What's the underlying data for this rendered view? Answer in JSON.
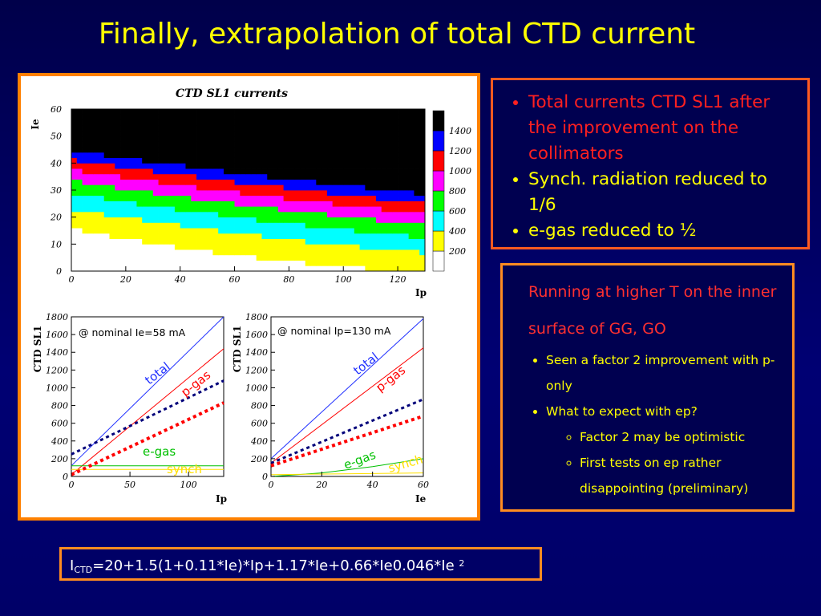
{
  "slide_title": "Finally, extrapolation of total CTD current",
  "box1": {
    "items": [
      {
        "text": "Total currents CTD SL1 after the improvement on the collimators"
      },
      {
        "text": "Synch. radiation reduced to 1/6"
      },
      {
        "text": "e-gas reduced to ½"
      }
    ]
  },
  "box2": {
    "heading": "Running at higher T on the inner surface of GG, GO",
    "items": [
      "Seen a factor 2 improvement with p-only",
      "What to expect with ep?"
    ],
    "subitems": [
      "Factor 2 may be optimistic",
      "First tests on ep rather disappointing (preliminary)"
    ]
  },
  "formula": {
    "prefix": "I",
    "subscript": "CTD",
    "body": "=20+1.5(1+0.11*Ie)*Ip+1.17*Ie+0.66*Ie0.046*Ie",
    "superscript": "2"
  },
  "colors": {
    "title": "#ffff00",
    "bullet_red": "#ff2020",
    "border_orange": "#ff8000",
    "total_line": "#2030ff",
    "pgas_line": "#ff0000",
    "egas_line": "#00c000",
    "synch_line": "#ffe000"
  },
  "chart_data": [
    {
      "type": "heatmap",
      "title": "CTD SL1 currents",
      "xlabel": "Ip",
      "ylabel": "Ie",
      "xlim": [
        0,
        130
      ],
      "ylim": [
        0,
        60
      ],
      "x_ticks": [
        "0",
        "20",
        "40",
        "60",
        "80",
        "100",
        "120"
      ],
      "y_ticks": [
        "0",
        "10",
        "20",
        "30",
        "40",
        "50",
        "60"
      ],
      "colorbar": {
        "labels": [
          "200",
          "400",
          "600",
          "800",
          "1000",
          "1200",
          "1400"
        ],
        "bins": [
          {
            "min": 0,
            "max": 200,
            "color": "#ffffff"
          },
          {
            "min": 200,
            "max": 400,
            "color": "#ffff00"
          },
          {
            "min": 400,
            "max": 600,
            "color": "#00ffff"
          },
          {
            "min": 600,
            "max": 800,
            "color": "#00ff00"
          },
          {
            "min": 800,
            "max": 1000,
            "color": "#ff00ff"
          },
          {
            "min": 1000,
            "max": 1200,
            "color": "#ff0000"
          },
          {
            "min": 1200,
            "max": 1400,
            "color": "#0000ff"
          },
          {
            "min": 1400,
            "max": 1600,
            "color": "#000000"
          }
        ]
      },
      "formula_coefficients": {
        "const": 20,
        "a": 1.5,
        "b": 0.11,
        "c": 1.17,
        "d": 0.66
      }
    },
    {
      "type": "line",
      "annotation": "@ nominal Ie=58 mA",
      "ylabel": "CTD SL1",
      "xlabel": "Ip",
      "xlim": [
        0,
        130
      ],
      "ylim": [
        0,
        1800
      ],
      "x_ticks": [
        "0",
        "50",
        "100"
      ],
      "y_ticks": [
        "0",
        "200",
        "400",
        "600",
        "800",
        "1000",
        "1200",
        "1400",
        "1600",
        "1800"
      ],
      "series": [
        {
          "name": "total",
          "style": "solid",
          "color": "#2030ff",
          "x": [
            0,
            130
          ],
          "y": [
            120,
            1800
          ]
        },
        {
          "name": "p-gas",
          "style": "solid",
          "color": "#ff0000",
          "x": [
            0,
            130
          ],
          "y": [
            20,
            1440
          ]
        },
        {
          "name": "e-gas",
          "style": "solid",
          "color": "#00c000",
          "x": [
            0,
            130
          ],
          "y": [
            120,
            120
          ]
        },
        {
          "name": "synch",
          "style": "solid",
          "color": "#ffe000",
          "x": [
            0,
            130
          ],
          "y": [
            80,
            80
          ]
        },
        {
          "style": "dotted",
          "color": "#00007a",
          "x": [
            0,
            130
          ],
          "y": [
            250,
            1080
          ]
        },
        {
          "style": "dotted",
          "color": "#ff0000",
          "x": [
            0,
            130
          ],
          "y": [
            20,
            830
          ]
        }
      ]
    },
    {
      "type": "line",
      "annotation": "@ nominal Ip=130 mA",
      "ylabel": "CTD SL1",
      "xlabel": "Ie",
      "xlim": [
        0,
        60
      ],
      "ylim": [
        0,
        1800
      ],
      "x_ticks": [
        "0",
        "20",
        "40",
        "60"
      ],
      "y_ticks": [
        "0",
        "200",
        "400",
        "600",
        "800",
        "1000",
        "1200",
        "1400",
        "1600",
        "1800"
      ],
      "series": [
        {
          "name": "total",
          "style": "solid",
          "color": "#2030ff",
          "x": [
            0,
            60
          ],
          "y": [
            200,
            1780
          ]
        },
        {
          "name": "p-gas",
          "style": "solid",
          "color": "#ff0000",
          "x": [
            0,
            60
          ],
          "y": [
            150,
            1450
          ]
        },
        {
          "name": "e-gas",
          "style": "solid",
          "color": "#00c000",
          "x": [
            0,
            20,
            40,
            60
          ],
          "y": [
            0,
            40,
            110,
            200
          ]
        },
        {
          "name": "synch",
          "style": "solid",
          "color": "#ffe000",
          "x": [
            0,
            60
          ],
          "y": [
            20,
            40
          ]
        },
        {
          "style": "dotted",
          "color": "#00007a",
          "x": [
            0,
            60
          ],
          "y": [
            150,
            870
          ]
        },
        {
          "style": "dotted",
          "color": "#ff0000",
          "x": [
            0,
            60
          ],
          "y": [
            120,
            680
          ]
        }
      ]
    }
  ]
}
